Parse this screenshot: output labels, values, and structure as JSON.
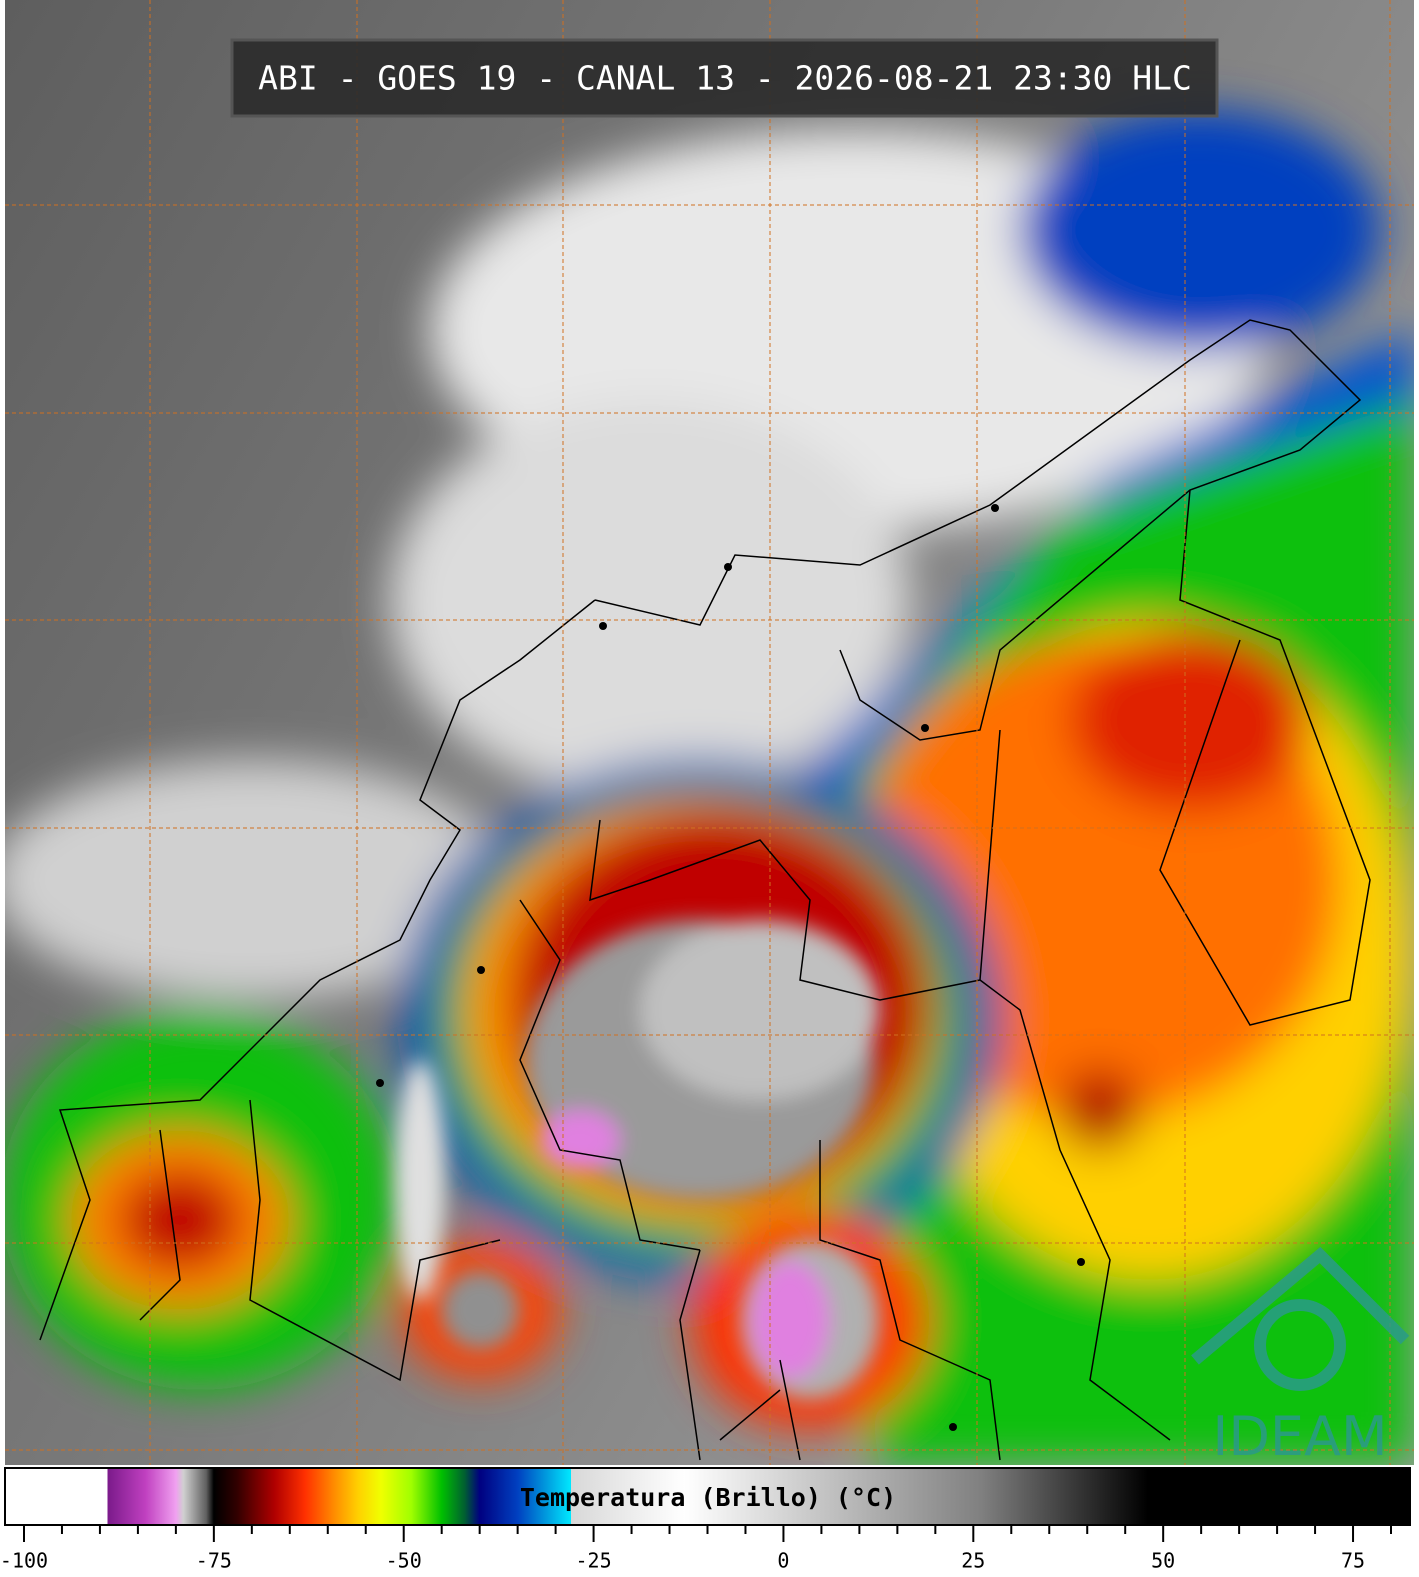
{
  "header": {
    "title": "ABI - GOES 19 - CANAL 13 - 2026-08-21 23:30 HLC"
  },
  "colorbar": {
    "label": "Temperatura (Brillo) (°C)",
    "lim": [
      -102.5,
      82.5
    ],
    "ticks": [
      -100,
      -75,
      -50,
      -25,
      0,
      25,
      50,
      75
    ],
    "minor_ticks": [
      -95,
      -90,
      -85,
      -80,
      -70,
      -65,
      -60,
      -55,
      -45,
      -40,
      -35,
      -30,
      -20,
      -15,
      -10,
      -5,
      5,
      10,
      15,
      20,
      30,
      35,
      40,
      45,
      55,
      60,
      65,
      70,
      80
    ],
    "stops": [
      {
        "value": -102.5,
        "color": "#ffffff"
      },
      {
        "value": -89,
        "color": "#ffffff"
      },
      {
        "value": -89,
        "color": "#7a1a8a"
      },
      {
        "value": -84,
        "color": "#c040c0"
      },
      {
        "value": -80,
        "color": "#f0a0f0"
      },
      {
        "value": -79,
        "color": "#d0d0d0"
      },
      {
        "value": -76,
        "color": "#606060"
      },
      {
        "value": -75,
        "color": "#000000"
      },
      {
        "value": -72,
        "color": "#300000"
      },
      {
        "value": -67,
        "color": "#b00000"
      },
      {
        "value": -63,
        "color": "#ff3000"
      },
      {
        "value": -59,
        "color": "#ff9000"
      },
      {
        "value": -56,
        "color": "#ffd000"
      },
      {
        "value": -53,
        "color": "#f0ff00"
      },
      {
        "value": -49,
        "color": "#a0ff00"
      },
      {
        "value": -45,
        "color": "#00c000"
      },
      {
        "value": -42,
        "color": "#006030"
      },
      {
        "value": -40,
        "color": "#000080"
      },
      {
        "value": -35,
        "color": "#0040c0"
      },
      {
        "value": -31,
        "color": "#00a0e0"
      },
      {
        "value": -28,
        "color": "#00e8ff"
      },
      {
        "value": -28,
        "color": "#d8d8d8"
      },
      {
        "value": -13,
        "color": "#ffffff"
      },
      {
        "value": 26,
        "color": "#808080"
      },
      {
        "value": 48,
        "color": "#000000"
      },
      {
        "value": 82.5,
        "color": "#000000"
      }
    ]
  },
  "logo": "IDEAM"
}
